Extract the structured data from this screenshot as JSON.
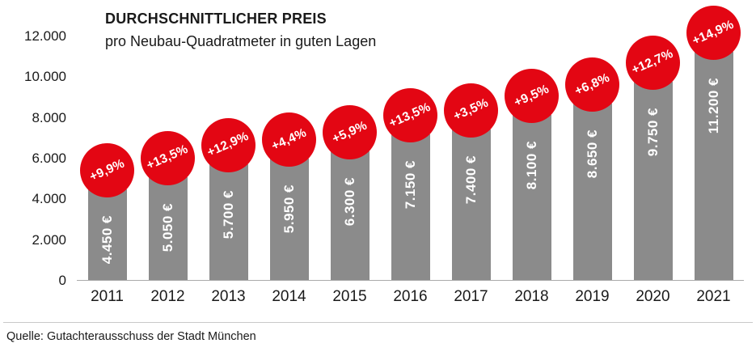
{
  "chart": {
    "title": "DURCHSCHNITTLICHER PREIS",
    "subtitle": "pro Neubau-Quadratmeter in guten Lagen"
  },
  "source": "Quelle: Gutachterausschuss der Stadt München",
  "chart_data": {
    "type": "bar",
    "title": "DURCHSCHNITTLICHER PREIS",
    "subtitle": "pro Neubau-Quadratmeter in guten Lagen",
    "xlabel": "",
    "ylabel": "",
    "categories": [
      "2011",
      "2012",
      "2013",
      "2014",
      "2015",
      "2016",
      "2017",
      "2018",
      "2019",
      "2020",
      "2021"
    ],
    "values": [
      4450,
      5050,
      5700,
      5950,
      6300,
      7150,
      7400,
      8100,
      8650,
      9750,
      11200
    ],
    "bar_value_labels": [
      "4.450 €",
      "5.050 €",
      "5.700 €",
      "5.950 €",
      "6.300 €",
      "7.150 €",
      "7.400 €",
      "8.100 €",
      "8.650 €",
      "9.750 €",
      "11.200 €"
    ],
    "pct_change_labels": [
      "+9,9%",
      "+13,5%",
      "+12,9%",
      "+4,4%",
      "+5,9%",
      "+13,5%",
      "+3,5%",
      "+9,5%",
      "+6,8%",
      "+12,7%",
      "+14,9%"
    ],
    "ylim": [
      0,
      12000
    ],
    "ytick_values": [
      12000,
      10000,
      8000,
      6000,
      4000,
      2000,
      0
    ],
    "ytick_labels": [
      "12.000",
      "10.000",
      "8.000",
      "6.000",
      "4.000",
      "2.000",
      "0"
    ],
    "legend": "none",
    "grid": "off",
    "bar_color": "#8b8b8b",
    "badge_color": "#e30613",
    "badge_text_color": "#ffffff",
    "bar_label_color": "#ffffff"
  }
}
